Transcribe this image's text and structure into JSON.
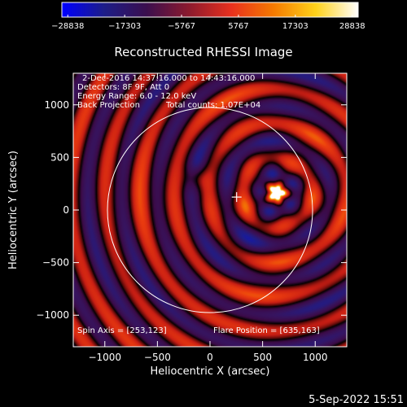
{
  "colorbar": {
    "ticks": [
      "-28838",
      "-17303",
      "-5767",
      "5767",
      "17303",
      "28838"
    ],
    "colors": [
      "#0000ff",
      "#1d1d88",
      "#3b0f4e",
      "#8c1a2e",
      "#e8301e",
      "#f57a00",
      "#ffd21a",
      "#ffffff"
    ]
  },
  "title": "Reconstructed RHESSI Image",
  "info": {
    "line1": "2-Dec-2016 14:37:16.000 to 14:43:16.000",
    "line2": "Detectors: 8F 9F, Att 0",
    "line3": "Energy Range: 6.0 - 12.0 keV",
    "line4a": "Back Projection",
    "line4b": "Total counts: 1.07E+04"
  },
  "spin_axis": "Spin Axis = [253,123]",
  "flare_position": "Flare Position = [635,163]",
  "timestamp": "5-Sep-2022 15:51",
  "chart_data": {
    "type": "heatmap",
    "title": "Reconstructed RHESSI Image",
    "xlabel": "Heliocentric X (arcsec)",
    "ylabel": "Heliocentric Y (arcsec)",
    "xlim": [
      -1300,
      1300
    ],
    "ylim": [
      -1300,
      1300
    ],
    "xticks": [
      {
        "v": -1000,
        "label": "−1000"
      },
      {
        "v": -500,
        "label": "−500"
      },
      {
        "v": 0,
        "label": "0"
      },
      {
        "v": 500,
        "label": "500"
      },
      {
        "v": 1000,
        "label": "1000"
      }
    ],
    "yticks": [
      {
        "v": 1000,
        "label": "1000"
      },
      {
        "v": 500,
        "label": "500"
      },
      {
        "v": 0,
        "label": "0"
      },
      {
        "v": -500,
        "label": "−500"
      },
      {
        "v": -1000,
        "label": "−1000"
      }
    ],
    "solar_disk": {
      "cx": 0,
      "cy": 0,
      "r": 975
    },
    "marker": {
      "x": 253,
      "y": 123
    },
    "peak": {
      "x": 635,
      "y": 163
    },
    "secondary_source": {
      "x": -130,
      "y": 300
    },
    "value_range": [
      -28838,
      28838
    ]
  }
}
